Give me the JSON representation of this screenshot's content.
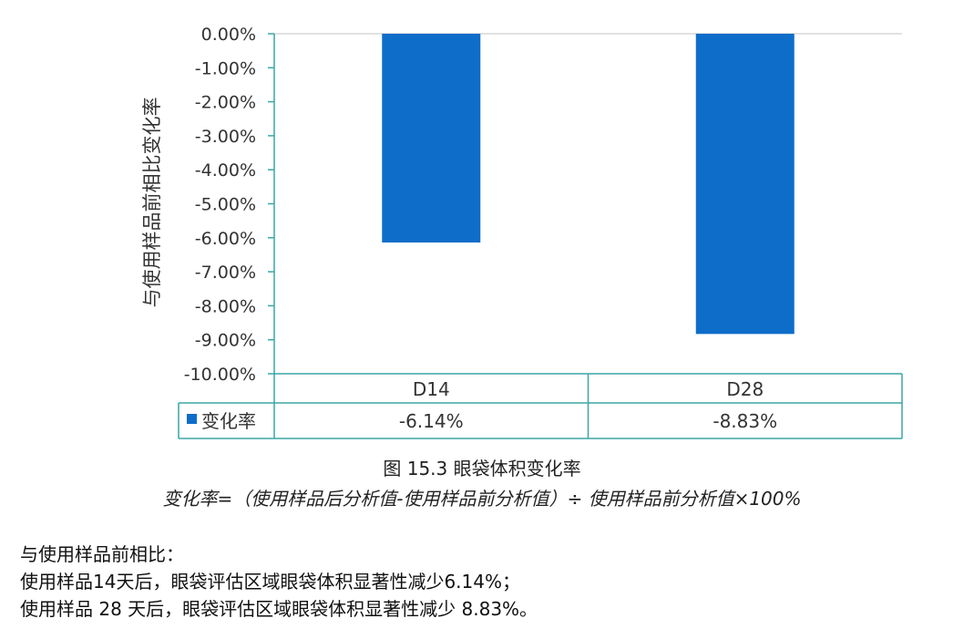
{
  "chart_data": {
    "type": "bar",
    "categories": [
      "D14",
      "D28"
    ],
    "series": [
      {
        "name": "变化率",
        "values": [
          -6.14,
          -8.83
        ],
        "labels": [
          "-6.14%",
          "-8.83%"
        ],
        "color": "#0e6dc9"
      }
    ],
    "ylabel": "与使用样品前相比变化率",
    "ylim": [
      -10,
      0
    ],
    "yticks": [
      "0.00%",
      "-1.00%",
      "-2.00%",
      "-3.00%",
      "-4.00%",
      "-5.00%",
      "-6.00%",
      "-7.00%",
      "-8.00%",
      "-9.00%",
      "-10.00%"
    ],
    "data_table": true,
    "colors": {
      "axis": "#3aa6a6",
      "grid": "#d9d9d9"
    }
  },
  "caption": "图 15.3 眼袋体积变化率",
  "formula": "变化率=（使用样品后分析值-使用样品前分析值）÷ 使用样品前分析值×100%",
  "paragraph": {
    "line1": "与使用样品前相比：",
    "line2": "使用样品14天后，眼袋评估区域眼袋体积显著性减少6.14%；",
    "line3": "使用样品 28 天后，眼袋评估区域眼袋体积显著性减少 8.83%。"
  }
}
